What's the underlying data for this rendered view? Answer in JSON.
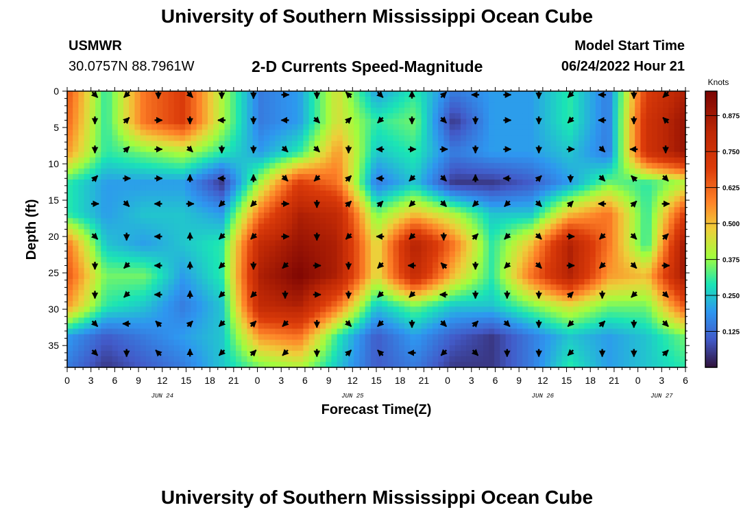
{
  "header": {
    "title": "University of Southern Mississippi Ocean Cube",
    "station": "USMWR",
    "coordinates": "30.0757N  88.7961W",
    "subtitle": "2-D Currents Speed-Magnitude",
    "model_label": "Model Start Time",
    "model_time": "06/24/2022 Hour 21",
    "footer_title": "University of Southern Mississippi Ocean Cube"
  },
  "chart_data": {
    "type": "heatmap",
    "title": "2-D Currents Speed-Magnitude",
    "xlabel": "Forecast Time(Z)",
    "ylabel": "Depth (ft)",
    "colorbar_label": "Knots",
    "colorbar_ticks": [
      "0.875",
      "0.750",
      "0.625",
      "0.500",
      "0.375",
      "0.250",
      "0.125"
    ],
    "colorbar_range": [
      0.0,
      0.96
    ],
    "x_range_hours": [
      0,
      78
    ],
    "x_ticks": [
      "0",
      "3",
      "6",
      "9",
      "12",
      "15",
      "18",
      "21",
      "0",
      "3",
      "6",
      "9",
      "12",
      "15",
      "18",
      "21",
      "0",
      "3",
      "6",
      "9",
      "12",
      "15",
      "18",
      "21",
      "0",
      "3",
      "6"
    ],
    "day_labels": [
      {
        "label": "JUN 24",
        "hour": 12
      },
      {
        "label": "JUN 25",
        "hour": 36
      },
      {
        "label": "JUN 26",
        "hour": 60
      },
      {
        "label": "JUN 27",
        "hour": 75
      }
    ],
    "y_range_ft": [
      0,
      38
    ],
    "y_ticks": [
      0,
      5,
      10,
      15,
      20,
      25,
      30,
      35
    ],
    "y_tick_labels": [
      "0",
      "5",
      "10",
      "15",
      "20",
      "25",
      "30",
      "35"
    ],
    "speed_knots": [
      [
        0.65,
        0.3,
        0.6,
        0.7,
        0.4,
        0.15,
        0.2,
        0.45,
        0.2,
        0.3,
        0.15,
        0.2,
        0.2,
        0.3,
        0.15,
        0.7,
        0.85
      ],
      [
        0.62,
        0.3,
        0.6,
        0.7,
        0.4,
        0.15,
        0.2,
        0.45,
        0.3,
        0.35,
        0.05,
        0.2,
        0.2,
        0.3,
        0.15,
        0.75,
        0.9
      ],
      [
        0.55,
        0.3,
        0.35,
        0.4,
        0.3,
        0.2,
        0.3,
        0.55,
        0.25,
        0.3,
        0.15,
        0.2,
        0.2,
        0.25,
        0.15,
        0.75,
        0.9
      ],
      [
        0.3,
        0.2,
        0.2,
        0.2,
        0.05,
        0.4,
        0.7,
        0.6,
        0.15,
        0.25,
        0.05,
        0.05,
        0.1,
        0.2,
        0.35,
        0.3,
        0.4
      ],
      [
        0.3,
        0.2,
        0.25,
        0.25,
        0.2,
        0.6,
        0.85,
        0.8,
        0.35,
        0.5,
        0.4,
        0.25,
        0.25,
        0.5,
        0.6,
        0.3,
        0.7
      ],
      [
        0.6,
        0.25,
        0.2,
        0.25,
        0.3,
        0.8,
        0.9,
        0.85,
        0.45,
        0.85,
        0.6,
        0.3,
        0.5,
        0.85,
        0.6,
        0.3,
        0.9
      ],
      [
        0.65,
        0.35,
        0.35,
        0.2,
        0.3,
        0.85,
        0.95,
        0.85,
        0.45,
        0.8,
        0.5,
        0.3,
        0.6,
        0.85,
        0.55,
        0.5,
        0.9
      ],
      [
        0.55,
        0.3,
        0.25,
        0.15,
        0.25,
        0.8,
        0.85,
        0.6,
        0.25,
        0.35,
        0.25,
        0.25,
        0.35,
        0.45,
        0.35,
        0.35,
        0.65
      ],
      [
        0.2,
        0.1,
        0.15,
        0.2,
        0.25,
        0.55,
        0.6,
        0.3,
        0.1,
        0.2,
        0.1,
        0.05,
        0.15,
        0.25,
        0.2,
        0.25,
        0.35
      ],
      [
        0.15,
        0.05,
        0.1,
        0.15,
        0.25,
        0.35,
        0.4,
        0.25,
        0.1,
        0.15,
        0.05,
        0.05,
        0.15,
        0.3,
        0.2,
        0.25,
        0.3
      ]
    ],
    "vector_rows_depth_ft": [
      0.5,
      4,
      8,
      12,
      15.5,
      20,
      24,
      28,
      32,
      36
    ],
    "vector_cols_hour": [
      3.5,
      7.5,
      11.5,
      15.5,
      19.5,
      23.5,
      27.5,
      31.5,
      35.5,
      39.5,
      43.5,
      47.5,
      51.5,
      55.5,
      59.5,
      63.5,
      67.5,
      71.5,
      75.5
    ],
    "direction_deg": [
      [
        45,
        135,
        90,
        45,
        90,
        90,
        0,
        90,
        225,
        45,
        270,
        315,
        180,
        0,
        90,
        135,
        180,
        90,
        135
      ],
      [
        90,
        315,
        0,
        90,
        180,
        90,
        180,
        45,
        315,
        135,
        90,
        45,
        90,
        0,
        90,
        135,
        180,
        90,
        225
      ],
      [
        90,
        315,
        0,
        45,
        90,
        90,
        45,
        45,
        90,
        180,
        0,
        0,
        90,
        0,
        90,
        0,
        45,
        180,
        90
      ],
      [
        315,
        0,
        0,
        270,
        180,
        270,
        45,
        135,
        315,
        180,
        135,
        45,
        270,
        180,
        315,
        90,
        45,
        225,
        45
      ],
      [
        0,
        45,
        180,
        0,
        135,
        135,
        0,
        90,
        315,
        315,
        135,
        45,
        135,
        135,
        45,
        315,
        180,
        315,
        0
      ],
      [
        45,
        90,
        180,
        270,
        135,
        135,
        0,
        90,
        135,
        180,
        135,
        90,
        315,
        135,
        45,
        0,
        135,
        45,
        315
      ],
      [
        90,
        135,
        180,
        270,
        135,
        90,
        135,
        0,
        90,
        135,
        180,
        225,
        90,
        135,
        45,
        0,
        135,
        45,
        0
      ],
      [
        90,
        135,
        180,
        270,
        135,
        135,
        90,
        0,
        90,
        135,
        135,
        180,
        90,
        90,
        90,
        315,
        90,
        135,
        45
      ],
      [
        45,
        180,
        225,
        315,
        135,
        315,
        135,
        90,
        45,
        135,
        90,
        45,
        315,
        45,
        90,
        135,
        315,
        90,
        45
      ],
      [
        45,
        90,
        225,
        270,
        135,
        315,
        135,
        90,
        315,
        225,
        180,
        135,
        45,
        90,
        90,
        135,
        90,
        90,
        315
      ]
    ]
  }
}
